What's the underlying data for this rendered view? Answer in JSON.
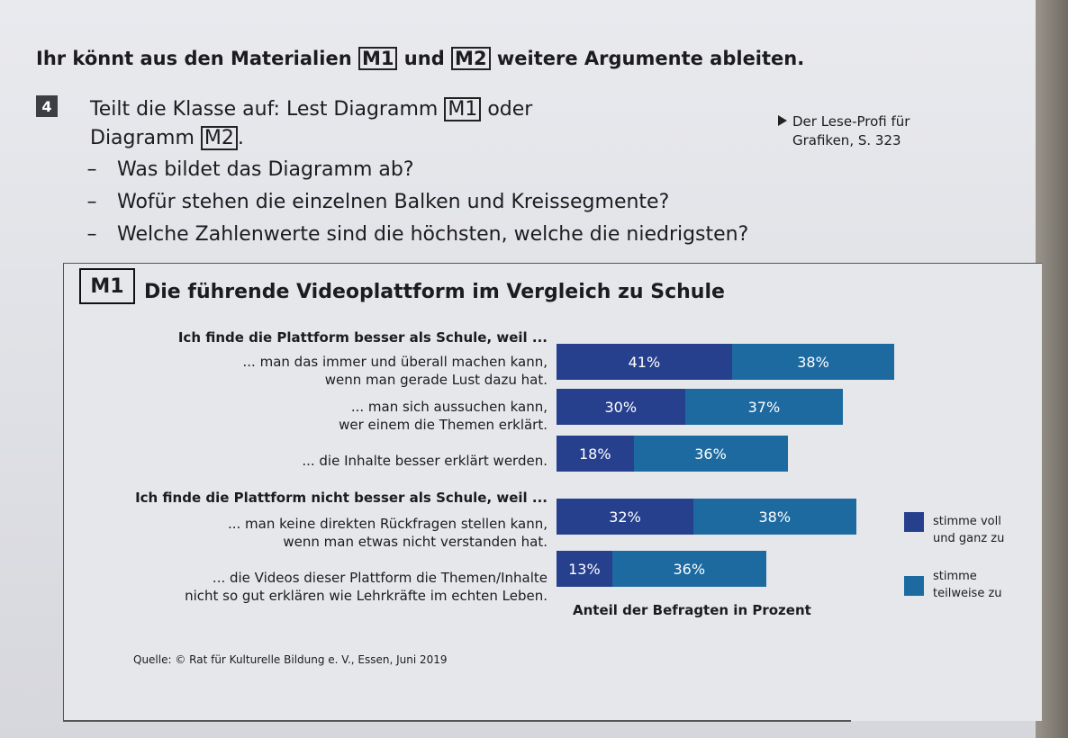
{
  "header": {
    "intro_pre": "Ihr könnt aus den Materialien",
    "intro_m1": "M1",
    "intro_mid": "und",
    "intro_m2": "M2",
    "intro_post": "weitere Argumente ableiten."
  },
  "task": {
    "number": "4",
    "line1_pre": "Teilt die Klasse auf: Lest Diagramm",
    "line1_m1": "M1",
    "line1_post": "oder",
    "line2_pre": "Diagramm",
    "line2_m2": "M2",
    "line2_post": ".",
    "ref_line1": "Der Lese-Profi für",
    "ref_line2": "Grafiken, S. 323",
    "questions": [
      "Was bildet das Diagramm ab?",
      "Wofür stehen die einzelnen Balken und Kreissegmente?",
      "Welche Zahlenwerte sind die höchsten, welche die niedrigsten?"
    ],
    "dash": "–"
  },
  "material": {
    "label": "M1",
    "source": "Quelle: © Rat für Kulturelle Bildung e. V., Essen, Juni 2019"
  },
  "colors": {
    "stimme_voll": "#27408e",
    "stimme_teilweise": "#1c6aa0"
  },
  "chart_data": {
    "type": "bar",
    "orientation": "horizontal",
    "stacked": true,
    "title": "Die führende Videoplattform im Vergleich zu Schule",
    "xlabel": "Anteil der Befragten in Prozent",
    "groups": [
      {
        "heading": "Ich finde die Plattform besser als Schule, weil ...",
        "categories": [
          "... man das immer und überall machen kann,\nwenn man gerade Lust dazu hat.",
          "... man sich aussuchen kann,\nwer einem die Themen erklärt.",
          "... die Inhalte besser erklärt werden."
        ]
      },
      {
        "heading": "Ich finde die Plattform nicht besser als Schule, weil ...",
        "categories": [
          "... man keine direkten Rückfragen stellen kann,\nwenn man etwas nicht verstanden hat.",
          "... die Videos dieser Plattform die Themen/Inhalte\nnicht so gut erklären wie Lehrkräfte im echten Leben."
        ]
      }
    ],
    "series": [
      {
        "name": "stimme voll und ganz zu",
        "values": [
          41,
          30,
          18,
          32,
          13
        ]
      },
      {
        "name": "stimme teilweise zu",
        "values": [
          38,
          37,
          36,
          38,
          36
        ]
      }
    ],
    "value_labels": {
      "stimme voll und ganz zu": [
        "41%",
        "30%",
        "18%",
        "32%",
        "13%"
      ],
      "stimme teilweise zu": [
        "38%",
        "37%",
        "36%",
        "38%",
        "36%"
      ]
    },
    "legend": [
      {
        "label": "stimme voll\nund ganz zu"
      },
      {
        "label": "stimme\nteilweise zu"
      }
    ],
    "legend_position": "right",
    "grid": false
  }
}
